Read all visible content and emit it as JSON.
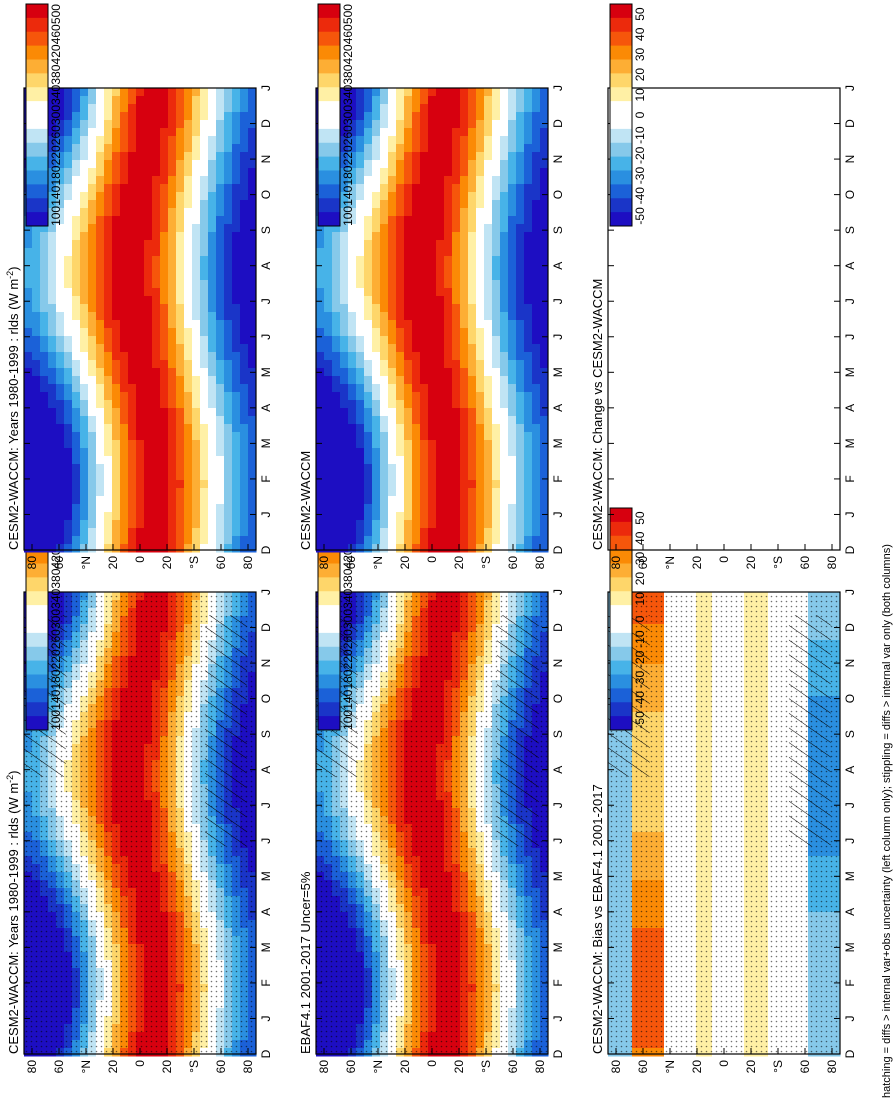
{
  "page": {
    "footnote": "hatching = diffs > internal var+obs uncertainty (left column only); stippling = diffs > internal var only (both columns)"
  },
  "chart_data": [
    {
      "type": "heatmap",
      "title": "CESM2-WACCM: Years 1980-1999 : rlds (W m",
      "title_sup": "-2",
      "title_end": ")",
      "xlabel": "",
      "ylabel": "",
      "x_ticks": [
        "D",
        "J",
        "F",
        "M",
        "A",
        "M",
        "J",
        "J",
        "A",
        "S",
        "O",
        "N",
        "D",
        "J"
      ],
      "y_ticks": [
        "80",
        "60",
        "°N",
        "20",
        "0",
        "20",
        "°S",
        "60",
        "80"
      ],
      "ylim": [
        -90,
        90
      ],
      "colorbar": {
        "labels": [
          "500",
          "460",
          "420",
          "380",
          "340",
          "300",
          "260",
          "220",
          "180",
          "140",
          "100"
        ],
        "colors": [
          "#d7000f",
          "#ec2a0c",
          "#f6560b",
          "#fb8a05",
          "#fdae34",
          "#fed66a",
          "#fff0a5",
          "#ffffff",
          "#ffffff",
          "#c0e4f4",
          "#86c9ea",
          "#47b3e8",
          "#2a8fe0",
          "#1b61d8",
          "#1a35c8",
          "#1d0ec2"
        ]
      },
      "field": "absolute",
      "hatching": true,
      "stippling": true
    },
    {
      "type": "heatmap",
      "title": "CESM2-WACCM: Years 1980-1999 : rlds (W m",
      "title_sup": "-2",
      "title_end": ")",
      "x_ticks": [
        "D",
        "J",
        "F",
        "M",
        "A",
        "M",
        "J",
        "J",
        "A",
        "S",
        "O",
        "N",
        "D",
        "J"
      ],
      "y_ticks": [
        "80",
        "60",
        "°N",
        "20",
        "0",
        "20",
        "°S",
        "60",
        "80"
      ],
      "ylim": [
        -90,
        90
      ],
      "colorbar": {
        "labels": [
          "500",
          "460",
          "420",
          "380",
          "340",
          "300",
          "260",
          "220",
          "180",
          "140",
          "100"
        ]
      },
      "field": "absolute",
      "hatching": false,
      "stippling": false
    },
    {
      "type": "heatmap",
      "title": "EBAF4.1 2001-2017 Uncer=5%",
      "x_ticks": [
        "D",
        "J",
        "F",
        "M",
        "A",
        "M",
        "J",
        "J",
        "A",
        "S",
        "O",
        "N",
        "D",
        "J"
      ],
      "y_ticks": [
        "80",
        "60",
        "°N",
        "20",
        "0",
        "20",
        "°S",
        "60",
        "80"
      ],
      "ylim": [
        -90,
        90
      ],
      "colorbar": {
        "labels": [
          "500",
          "460",
          "420",
          "380",
          "340",
          "300",
          "260",
          "220",
          "180",
          "140",
          "100"
        ]
      },
      "field": "absolute",
      "hatching": true,
      "stippling": true
    },
    {
      "type": "heatmap",
      "title": "CESM2-WACCM",
      "x_ticks": [
        "D",
        "J",
        "F",
        "M",
        "A",
        "M",
        "J",
        "J",
        "A",
        "S",
        "O",
        "N",
        "D",
        "J"
      ],
      "y_ticks": [
        "80",
        "60",
        "°N",
        "20",
        "0",
        "20",
        "°S",
        "60",
        "80"
      ],
      "ylim": [
        -90,
        90
      ],
      "colorbar": {
        "labels": [
          "500",
          "460",
          "420",
          "380",
          "340",
          "300",
          "260",
          "220",
          "180",
          "140",
          "100"
        ]
      },
      "field": "absolute",
      "hatching": false,
      "stippling": false
    },
    {
      "type": "heatmap",
      "title": "CESM2-WACCM: Bias vs EBAF4.1 2001-2017",
      "x_ticks": [
        "D",
        "J",
        "F",
        "M",
        "A",
        "M",
        "J",
        "J",
        "A",
        "S",
        "O",
        "N",
        "D",
        "J"
      ],
      "y_ticks": [
        "80",
        "60",
        "°N",
        "20",
        "0",
        "20",
        "°S",
        "60",
        "80"
      ],
      "ylim": [
        -90,
        90
      ],
      "colorbar": {
        "labels": [
          "50",
          "40",
          "30",
          "20",
          "10",
          "0",
          "-10",
          "-20",
          "-30",
          "-40",
          "-50"
        ],
        "colors": [
          "#d7000f",
          "#ec2a0c",
          "#f6560b",
          "#fb8a05",
          "#fdae34",
          "#fed66a",
          "#fff0a5",
          "#ffffff",
          "#ffffff",
          "#c0e4f4",
          "#86c9ea",
          "#47b3e8",
          "#2a8fe0",
          "#1b61d8",
          "#1a35c8",
          "#1d0ec2"
        ]
      },
      "field": "difference",
      "hatching": true,
      "stippling": true
    },
    {
      "type": "heatmap",
      "title": "CESM2-WACCM: Change vs CESM2-WACCM",
      "x_ticks": [
        "D",
        "J",
        "F",
        "M",
        "A",
        "M",
        "J",
        "J",
        "A",
        "S",
        "O",
        "N",
        "D",
        "J"
      ],
      "y_ticks": [
        "80",
        "60",
        "°N",
        "20",
        "0",
        "20",
        "°S",
        "60",
        "80"
      ],
      "ylim": [
        -90,
        90
      ],
      "colorbar": {
        "labels": [
          "50",
          "40",
          "30",
          "20",
          "10",
          "0",
          "-10",
          "-20",
          "-30",
          "-40",
          "-50"
        ]
      },
      "field": "empty",
      "hatching": false,
      "stippling": false
    }
  ]
}
